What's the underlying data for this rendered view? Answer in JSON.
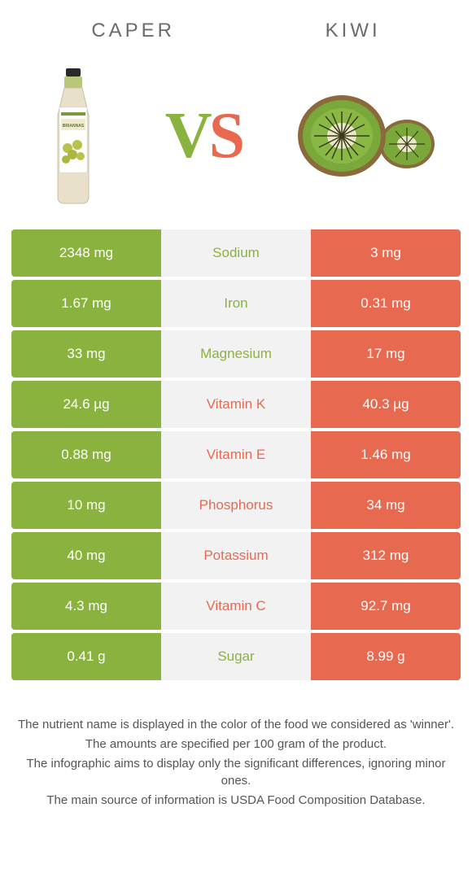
{
  "colors": {
    "left": "#8ab23f",
    "right": "#e7694f",
    "mid_bg": "#f2f2f2",
    "text": "#ffffff"
  },
  "header": {
    "left_title": "Caper",
    "right_title": "Kiwi"
  },
  "vs": {
    "v": "V",
    "s": "S"
  },
  "rows": [
    {
      "label": "Sodium",
      "left": "2348 mg",
      "right": "3 mg",
      "winner": "left"
    },
    {
      "label": "Iron",
      "left": "1.67 mg",
      "right": "0.31 mg",
      "winner": "left"
    },
    {
      "label": "Magnesium",
      "left": "33 mg",
      "right": "17 mg",
      "winner": "left"
    },
    {
      "label": "Vitamin K",
      "left": "24.6 µg",
      "right": "40.3 µg",
      "winner": "right"
    },
    {
      "label": "Vitamin E",
      "left": "0.88 mg",
      "right": "1.46 mg",
      "winner": "right"
    },
    {
      "label": "Phosphorus",
      "left": "10 mg",
      "right": "34 mg",
      "winner": "right"
    },
    {
      "label": "Potassium",
      "left": "40 mg",
      "right": "312 mg",
      "winner": "right"
    },
    {
      "label": "Vitamin C",
      "left": "4.3 mg",
      "right": "92.7 mg",
      "winner": "right"
    },
    {
      "label": "Sugar",
      "left": "0.41 g",
      "right": "8.99 g",
      "winner": "left"
    }
  ],
  "footer": {
    "line1": "The nutrient name is displayed in the color of the food we considered as 'winner'.",
    "line2": "The amounts are specified per 100 gram of the product.",
    "line3": "The infographic aims to display only the significant differences, ignoring minor ones.",
    "line4": "The main source of information is USDA Food Composition Database."
  }
}
